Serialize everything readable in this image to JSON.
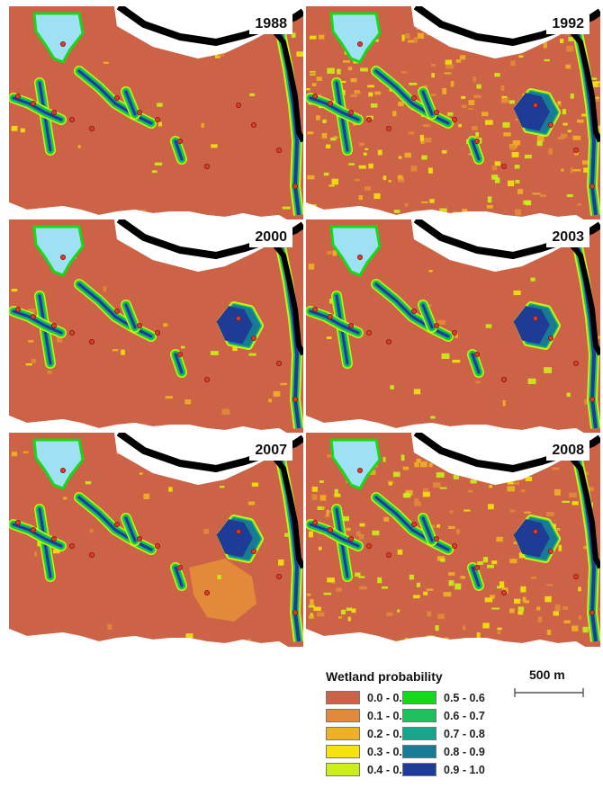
{
  "panels": [
    {
      "year": "1988",
      "noise": 0.04,
      "big_east": false
    },
    {
      "year": "1992",
      "noise": 0.55,
      "big_east": true
    },
    {
      "year": "2000",
      "noise": 0.06,
      "big_east": true
    },
    {
      "year": "2003",
      "noise": 0.07,
      "big_east": true
    },
    {
      "year": "2007",
      "noise": 0.06,
      "big_east": true,
      "orange_patch": true
    },
    {
      "year": "2008",
      "noise": 0.45,
      "big_east": true
    }
  ],
  "legend": {
    "title": "Wetland probability",
    "classes": [
      {
        "label": "0.0 - 0.1",
        "color": "#cc6347"
      },
      {
        "label": "0.1 - 0.2",
        "color": "#e2893a"
      },
      {
        "label": "0.2 - 0.3",
        "color": "#efb124"
      },
      {
        "label": "0.3 - 0.4",
        "color": "#f5e20e"
      },
      {
        "label": "0.4 - 0.5",
        "color": "#ccee1a"
      },
      {
        "label": "0.5 - 0.6",
        "color": "#16d919"
      },
      {
        "label": "0.6 - 0.7",
        "color": "#1fbf5e"
      },
      {
        "label": "0.7 - 0.8",
        "color": "#17a58e"
      },
      {
        "label": "0.8 - 0.9",
        "color": "#187b96"
      },
      {
        "label": "0.9 - 1.0",
        "color": "#1e3c95"
      }
    ]
  },
  "scale": {
    "label": "500 m"
  },
  "colors": {
    "lake": "#9ee1f5",
    "river": "#000000",
    "point_fill": "#e13a2a",
    "background": "#ffffff"
  }
}
